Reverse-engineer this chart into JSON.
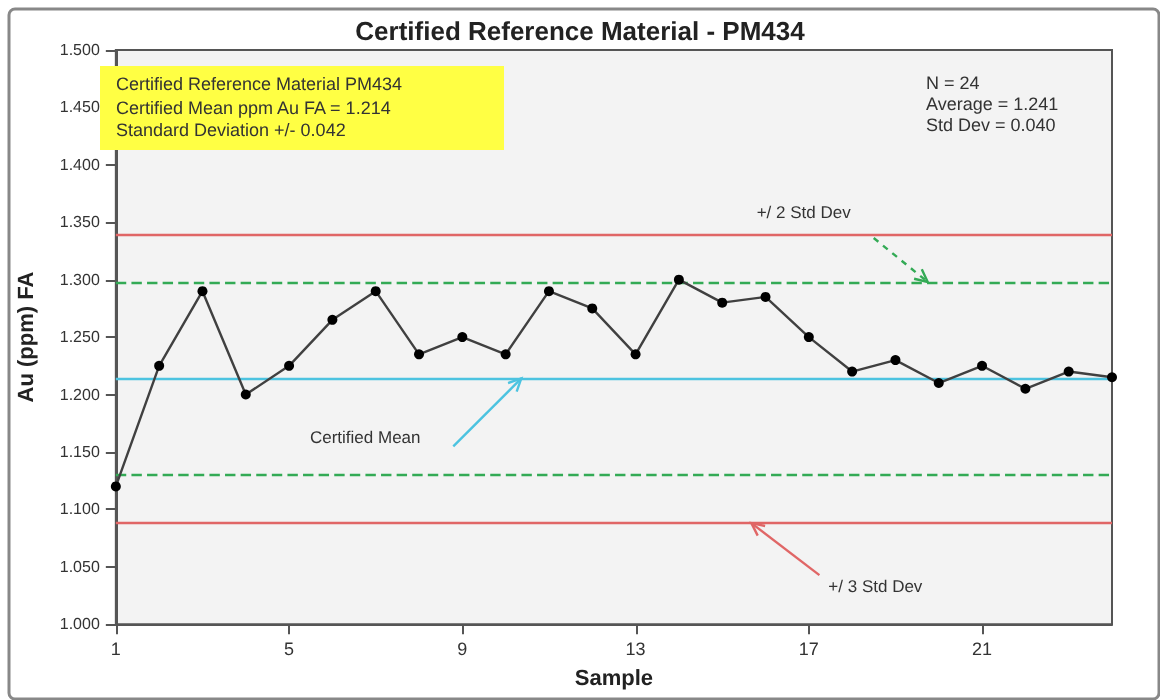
{
  "chart_data": {
    "type": "line",
    "title": "Certified Reference Material - PM434",
    "xlabel": "Sample",
    "ylabel": "Au (ppm) FA",
    "x": [
      1,
      2,
      3,
      4,
      5,
      6,
      7,
      8,
      9,
      10,
      11,
      12,
      13,
      14,
      15,
      16,
      17,
      18,
      19,
      20,
      21,
      22,
      23,
      24
    ],
    "series": [
      {
        "color": "#404040",
        "values": [
          1.12,
          1.225,
          1.29,
          1.2,
          1.225,
          1.265,
          1.29,
          1.235,
          1.25,
          1.235,
          1.29,
          1.275,
          1.235,
          1.3,
          1.28,
          1.285,
          1.25,
          1.22,
          1.23,
          1.21,
          1.225,
          1.205,
          1.22,
          1.215
        ]
      }
    ],
    "xlim": [
      1,
      24
    ],
    "xticks": [
      1,
      5,
      9,
      13,
      17,
      21
    ],
    "ylim": [
      1.0,
      1.5
    ],
    "yticks": [
      {
        "value": 1.0,
        "label": "1.000"
      },
      {
        "value": 1.05,
        "label": "1.050"
      },
      {
        "value": 1.1,
        "label": "1.100"
      },
      {
        "value": 1.15,
        "label": "1.150"
      },
      {
        "value": 1.2,
        "label": "1.200"
      },
      {
        "value": 1.25,
        "label": "1.250"
      },
      {
        "value": 1.3,
        "label": "1.300"
      },
      {
        "value": 1.35,
        "label": "1.350"
      },
      {
        "value": 1.4,
        "label": "1.400"
      },
      {
        "value": 1.45,
        "label": "1.450"
      },
      {
        "value": 1.5,
        "label": "1.500"
      }
    ],
    "ref_lines": [
      {
        "axis": "y",
        "value": 1.34,
        "color": "#e06666",
        "line_style": "solid"
      },
      {
        "axis": "y",
        "value": 1.298,
        "color": "#33aa55",
        "line_style": "dashed"
      },
      {
        "axis": "y",
        "value": 1.214,
        "color": "#4cc3e0",
        "line_style": "solid",
        "label": "Certified Mean"
      },
      {
        "axis": "y",
        "value": 1.13,
        "color": "#33aa55",
        "line_style": "dashed"
      },
      {
        "axis": "y",
        "value": 1.088,
        "color": "#e06666",
        "line_style": "solid",
        "label": "+/ 3 Std Dev"
      }
    ],
    "annotations": [
      "Certified Reference Material PM434",
      "Certified Mean ppm Au FA  = 1.214",
      "Standard Deviation  +/- 0.042",
      "N = 24",
      "Average = 1.241",
      "Std Dev = 0.040",
      "+/ 2 Std Dev"
    ],
    "grid": false,
    "marker": "circle",
    "line_style": "solid"
  }
}
